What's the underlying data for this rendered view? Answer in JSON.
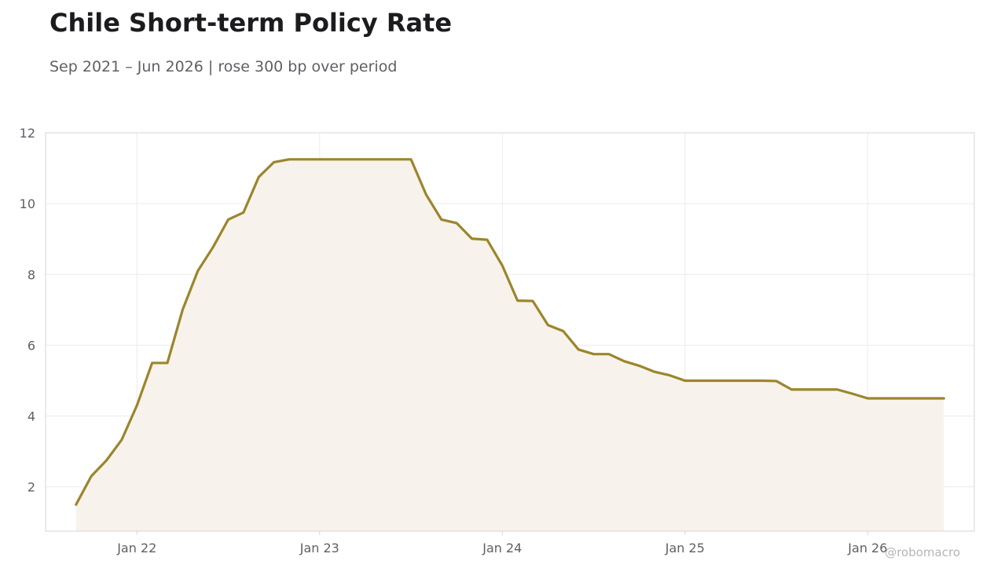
{
  "header": {
    "title": "Chile Short-term Policy Rate",
    "subtitle": "Sep 2021 – Jun 2026 | rose 300 bp over period"
  },
  "watermark": "@robomacro",
  "colors": {
    "line": "#9c852c",
    "fill": "#f7f3ec",
    "grid": "#ececec",
    "axis": "#d6d6d6",
    "tick_text": "#5f6066"
  },
  "chart_data": {
    "type": "area",
    "title": "Chile Short-term Policy Rate",
    "subtitle": "Sep 2021 – Jun 2026 | rose 300 bp over period",
    "xlabel": "",
    "ylabel": "",
    "x_ticks": [
      "Jan 22",
      "Jan 23",
      "Jan 24",
      "Jan 25",
      "Jan 26"
    ],
    "y_ticks": [
      2,
      4,
      6,
      8,
      10,
      12
    ],
    "ylim": [
      0.75,
      12
    ],
    "xlim": [
      "2021-07",
      "2026-08"
    ],
    "grid": true,
    "legend": "none",
    "series": [
      {
        "x": [
          "2021-09",
          "2021-10",
          "2021-11",
          "2021-12",
          "2022-01",
          "2022-02",
          "2022-03",
          "2022-04",
          "2022-05",
          "2022-06",
          "2022-07",
          "2022-08",
          "2022-09",
          "2022-10",
          "2022-11",
          "2022-12",
          "2023-01",
          "2023-02",
          "2023-03",
          "2023-04",
          "2023-05",
          "2023-06",
          "2023-07",
          "2023-08",
          "2023-09",
          "2023-10",
          "2023-11",
          "2023-12",
          "2024-01",
          "2024-02",
          "2024-03",
          "2024-04",
          "2024-05",
          "2024-06",
          "2024-07",
          "2024-08",
          "2024-09",
          "2024-10",
          "2024-11",
          "2024-12",
          "2025-01",
          "2025-02",
          "2025-03",
          "2025-04",
          "2025-05",
          "2025-06",
          "2025-07",
          "2025-08",
          "2025-09",
          "2025-10",
          "2025-11",
          "2025-12",
          "2026-01",
          "2026-02",
          "2026-03",
          "2026-04",
          "2026-05",
          "2026-06"
        ],
        "values": [
          1.5,
          2.3,
          2.75,
          3.33,
          4.3,
          5.5,
          5.5,
          7.0,
          8.1,
          8.77,
          9.55,
          9.75,
          10.75,
          11.17,
          11.25,
          11.25,
          11.25,
          11.25,
          11.25,
          11.25,
          11.25,
          11.25,
          11.25,
          10.25,
          9.55,
          9.45,
          9.01,
          8.98,
          8.25,
          7.26,
          7.25,
          6.57,
          6.4,
          5.88,
          5.75,
          5.75,
          5.55,
          5.42,
          5.25,
          5.15,
          5.0,
          5.0,
          5.0,
          5.0,
          5.0,
          5.0,
          4.99,
          4.75,
          4.75,
          4.75,
          4.75,
          4.63,
          4.5,
          4.5,
          4.5,
          4.5,
          4.5,
          4.5
        ]
      }
    ]
  }
}
